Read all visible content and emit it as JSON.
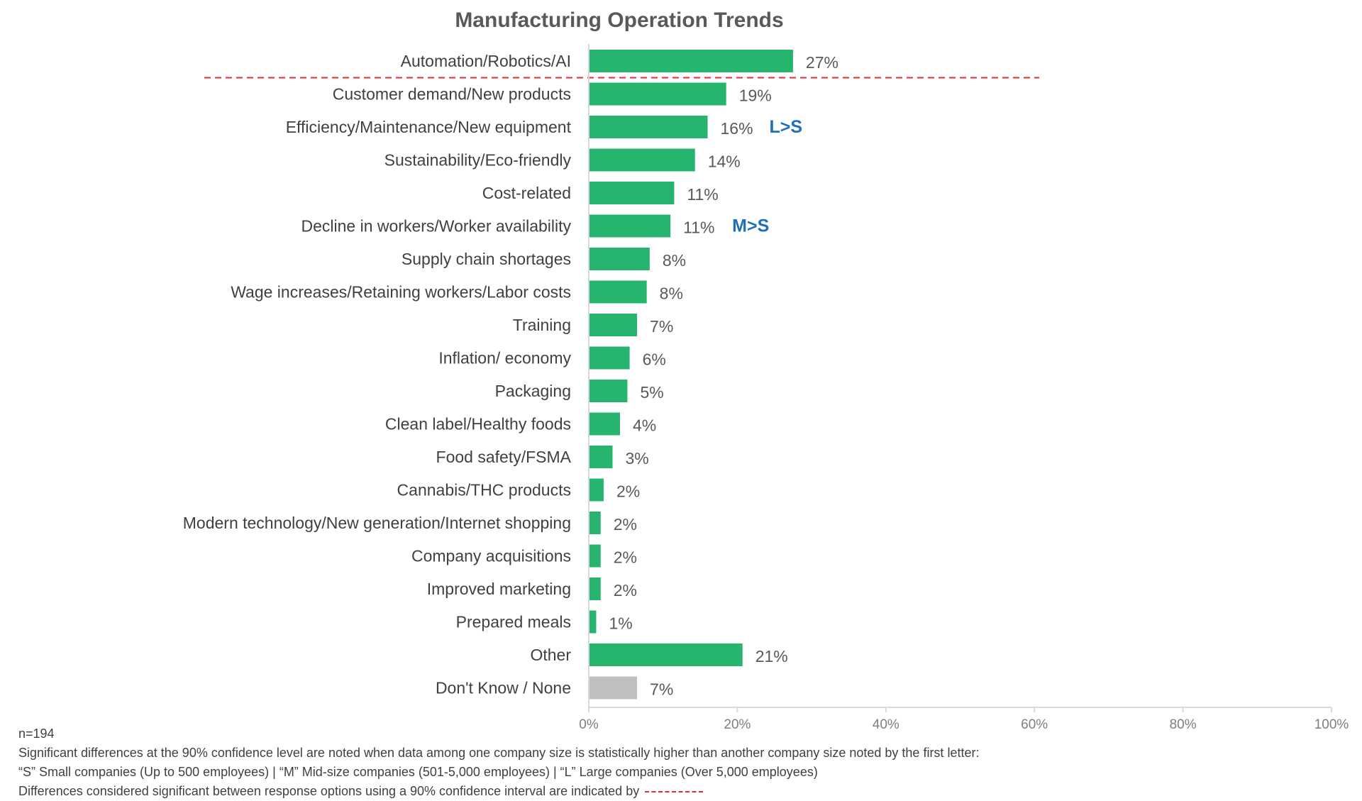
{
  "chart_data": {
    "type": "bar",
    "orientation": "horizontal",
    "title": "Manufacturing Operation Trends",
    "categories": [
      "Automation/Robotics/AI",
      "Customer demand/New products",
      "Efficiency/Maintenance/New equipment",
      "Sustainability/Eco-friendly",
      "Cost-related",
      "Decline in workers/Worker availability",
      "Supply chain shortages",
      "Wage increases/Retaining workers/Labor costs",
      "Training",
      "Inflation/ economy",
      "Packaging",
      "Clean label/Healthy foods",
      "Food safety/FSMA",
      "Cannabis/THC products",
      "Modern technology/New generation/Internet shopping",
      "Company acquisitions",
      "Improved marketing",
      "Prepared meals",
      "Other",
      "Don't Know /  None"
    ],
    "values": [
      27,
      19,
      16,
      14,
      11,
      11,
      8,
      8,
      7,
      6,
      5,
      4,
      3,
      2,
      2,
      2,
      2,
      1,
      21,
      7
    ],
    "value_labels": [
      "27%",
      "19%",
      "16%",
      "14%",
      "11%",
      "11%",
      "8%",
      "8%",
      "7%",
      "6%",
      "5%",
      "4%",
      "3%",
      "2%",
      "2%",
      "2%",
      "2%",
      "1%",
      "21%",
      "7%"
    ],
    "bar_lengths": [
      27.5,
      18.5,
      16,
      14.3,
      11.5,
      11,
      8.2,
      7.8,
      6.5,
      5.5,
      5.2,
      4.2,
      3.2,
      2,
      1.6,
      1.6,
      1.6,
      1,
      20.7,
      6.5
    ],
    "bar_colors": [
      "#27b46e",
      "#27b46e",
      "#27b46e",
      "#27b46e",
      "#27b46e",
      "#27b46e",
      "#27b46e",
      "#27b46e",
      "#27b46e",
      "#27b46e",
      "#27b46e",
      "#27b46e",
      "#27b46e",
      "#27b46e",
      "#27b46e",
      "#27b46e",
      "#27b46e",
      "#27b46e",
      "#27b46e",
      "#bfbfbf"
    ],
    "significance_annotations": [
      {
        "category_index": 2,
        "text": "L>S"
      },
      {
        "category_index": 5,
        "text": "M>S"
      }
    ],
    "xlim": [
      0,
      100
    ],
    "x_ticks": [
      "0%",
      "20%",
      "40%",
      "60%",
      "80%",
      "100%"
    ],
    "x_tick_values": [
      0,
      20,
      40,
      60,
      80,
      100
    ],
    "significance_line_after_index": 0,
    "xlabel": "",
    "ylabel": "",
    "grid": false
  },
  "notes": {
    "sample_size": "n=194",
    "line1": "Significant differences at the 90% confidence level are noted when data among one company size is statistically higher than another company size noted by the first letter:",
    "line2": "“S” Small companies (Up to 500 employees) | “M” Mid-size companies (501-5,000 employees) | “L” Large companies (Over 5,000 employees)",
    "line3": "Differences considered significant between response options using a 90% confidence interval are indicated by"
  },
  "colors": {
    "bar": "#27b46e",
    "bar_none": "#bfbfbf",
    "annotation": "#1f6fbd",
    "significance_line": "#e03030"
  }
}
